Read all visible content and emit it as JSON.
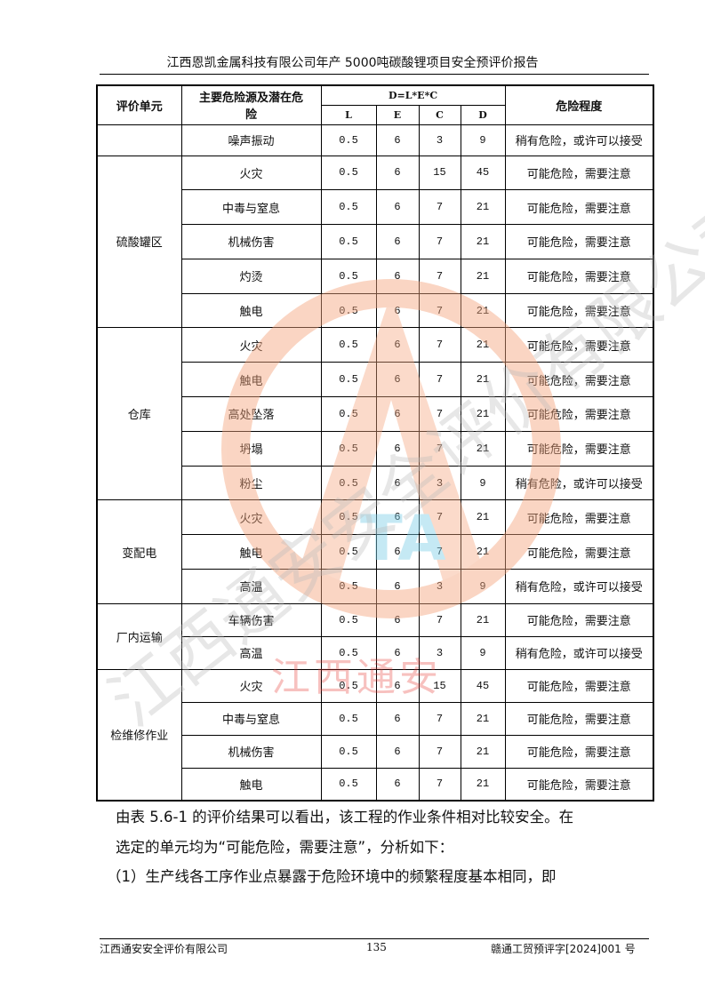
{
  "header": {
    "title": "江西恩凯金属科技有限公司年产 5000吨碳酸锂项目安全预评价报告"
  },
  "table": {
    "headers": {
      "unit": "评价单元",
      "hazard": "主要危险源及潜在危险",
      "formula": "D=L*E*C",
      "L": "L",
      "E": "E",
      "C": "C",
      "D": "D",
      "level": "危险程度"
    },
    "groups": [
      {
        "unit": "",
        "rows": [
          [
            "噪声振动",
            "0.5",
            "6",
            "3",
            "9",
            "稍有危险，或许可以接受"
          ]
        ]
      },
      {
        "unit": "硫酸罐区",
        "rows": [
          [
            "火灾",
            "0.5",
            "6",
            "15",
            "45",
            "可能危险，需要注意"
          ],
          [
            "中毒与窒息",
            "0.5",
            "6",
            "7",
            "21",
            "可能危险，需要注意"
          ],
          [
            "机械伤害",
            "0.5",
            "6",
            "7",
            "21",
            "可能危险，需要注意"
          ],
          [
            "灼烫",
            "0.5",
            "6",
            "7",
            "21",
            "可能危险，需要注意"
          ],
          [
            "触电",
            "0.5",
            "6",
            "7",
            "21",
            "可能危险，需要注意"
          ]
        ]
      },
      {
        "unit": "仓库",
        "rows": [
          [
            "火灾",
            "0.5",
            "6",
            "7",
            "21",
            "可能危险，需要注意"
          ],
          [
            "触电",
            "0.5",
            "6",
            "7",
            "21",
            "可能危险，需要注意"
          ],
          [
            "高处坠落",
            "0.5",
            "6",
            "7",
            "21",
            "可能危险，需要注意"
          ],
          [
            "坍塌",
            "0.5",
            "6",
            "7",
            "21",
            "可能危险，需要注意"
          ],
          [
            "粉尘",
            "0.5",
            "6",
            "3",
            "9",
            "稍有危险，或许可以接受"
          ]
        ]
      },
      {
        "unit": "变配电",
        "rows": [
          [
            "火灾",
            "0.5",
            "6",
            "7",
            "21",
            "可能危险，需要注意"
          ],
          [
            "触电",
            "0.5",
            "6",
            "7",
            "21",
            "可能危险，需要注意"
          ],
          [
            "高温",
            "0.5",
            "6",
            "3",
            "9",
            "稍有危险，或许可以接受"
          ]
        ]
      },
      {
        "unit": "厂内运输",
        "rows": [
          [
            "车辆伤害",
            "0.5",
            "6",
            "7",
            "21",
            "可能危险，需要注意"
          ],
          [
            "高温",
            "0.5",
            "6",
            "3",
            "9",
            "稍有危险，或许可以接受"
          ]
        ]
      },
      {
        "unit": "检维修作业",
        "rows": [
          [
            "火灾",
            "0.5",
            "6",
            "15",
            "45",
            "可能危险，需要注意"
          ],
          [
            "中毒与窒息",
            "0.5",
            "6",
            "7",
            "21",
            "可能危险，需要注意"
          ],
          [
            "机械伤害",
            "0.5",
            "6",
            "7",
            "21",
            "可能危险，需要注意"
          ],
          [
            "触电",
            "0.5",
            "6",
            "7",
            "21",
            "可能危险，需要注意"
          ]
        ]
      }
    ]
  },
  "body": {
    "line1": "由表 5.6-1 的评价结果可以看出，该工程的作业条件相对比较安全。在",
    "line2": "选定的单元均为“可能危险，需要注意”，分析如下：",
    "line3": "（1）生产线各工序作业点暴露于危险环境中的频繁程度基本相同，即"
  },
  "footer": {
    "company": "江西通安安全评价有限公司",
    "page": "135",
    "doc_no": "赣通工贸预评字[2024]001 号"
  },
  "watermark": {
    "text": "江西通安安全评价有限公司",
    "red_text": "江西通安",
    "logo_letters": "TA",
    "color_orange": "#f4a47c",
    "color_red": "#e8342e"
  }
}
